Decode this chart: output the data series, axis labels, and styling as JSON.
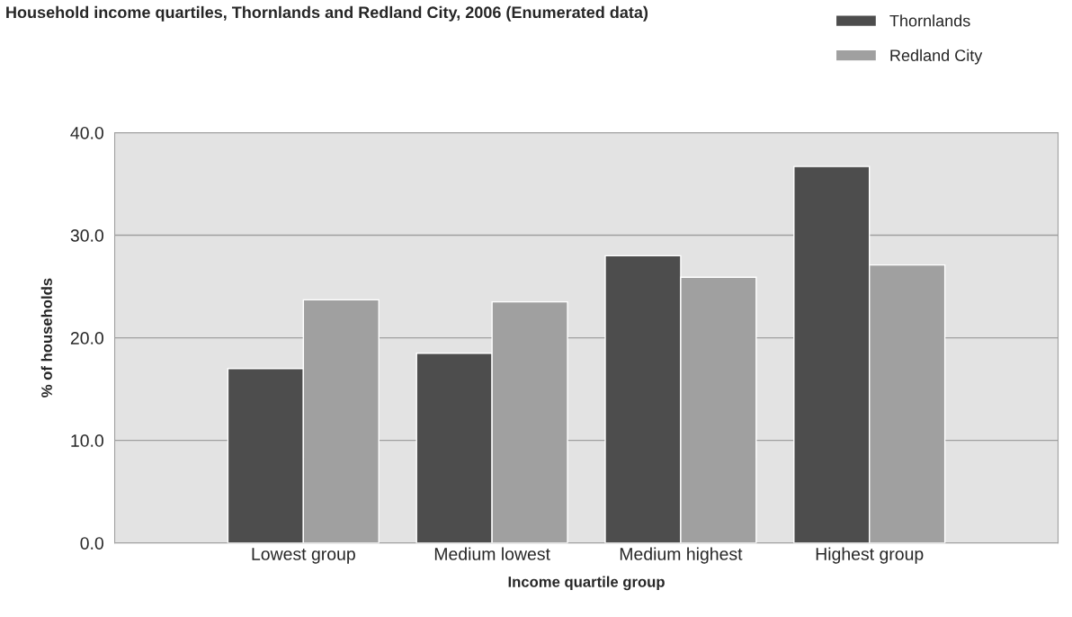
{
  "chart_data": {
    "type": "bar",
    "title": "Household income quartiles, Thornlands and Redland City, 2006 (Enumerated data)",
    "xlabel": "Income quartile group",
    "ylabel": "% of households",
    "categories": [
      "Lowest group",
      "Medium lowest",
      "Medium highest",
      "Highest group"
    ],
    "series": [
      {
        "name": "Thornlands",
        "color": "#4d4d4d",
        "values": [
          17.0,
          18.5,
          28.0,
          36.7
        ]
      },
      {
        "name": "Redland City",
        "color": "#a0a0a0",
        "values": [
          23.7,
          23.5,
          25.9,
          27.1
        ]
      }
    ],
    "ylim": [
      0,
      40
    ],
    "yticks": [
      {
        "value": 0,
        "label": "0.0"
      },
      {
        "value": 10,
        "label": "10.0"
      },
      {
        "value": 20,
        "label": "20.0"
      },
      {
        "value": 30,
        "label": "30.0"
      },
      {
        "value": 40,
        "label": "40.0"
      }
    ],
    "grid": "y",
    "legend": "top right"
  }
}
